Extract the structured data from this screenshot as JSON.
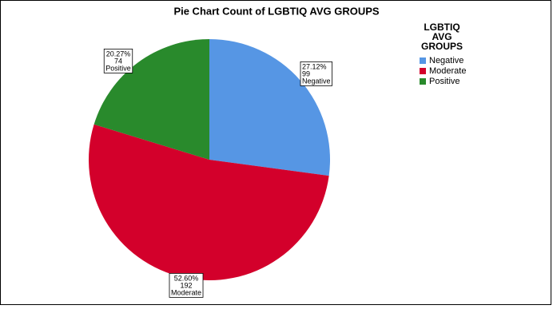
{
  "chart_data": {
    "type": "pie",
    "title": "Pie Chart Count of LGBTIQ AVG GROUPS",
    "legend_title": "LGBTIQ AVG GROUPS",
    "categories": [
      "Negative",
      "Moderate",
      "Positive"
    ],
    "values": [
      27.12,
      52.6,
      20.27
    ],
    "value_labels": [
      "27.12%",
      "52.60%",
      "20.27%"
    ],
    "counts": [
      99,
      192,
      74
    ],
    "colors": [
      "#5696e4",
      "#d3002b",
      "#298a2c"
    ],
    "legend_position": "top-right"
  }
}
